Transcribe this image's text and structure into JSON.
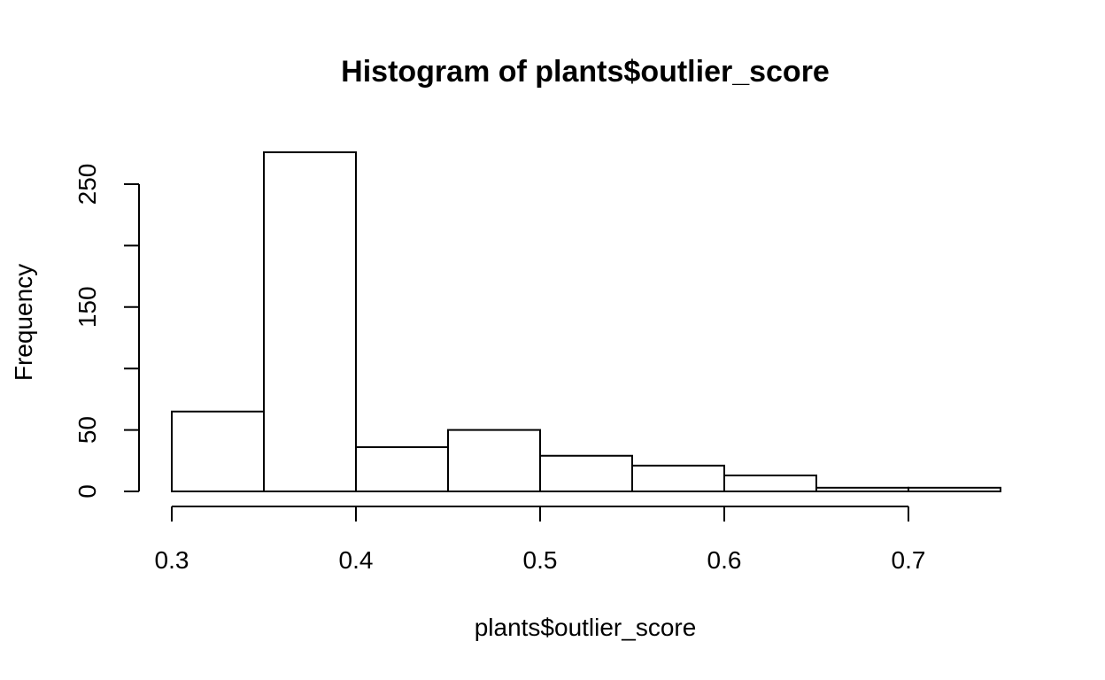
{
  "chart_data": {
    "type": "bar",
    "title": "Histogram of plants$outlier_score",
    "xlabel": "plants$outlier_score",
    "ylabel": "Frequency",
    "bins": [
      {
        "start": 0.3,
        "end": 0.35,
        "count": 65
      },
      {
        "start": 0.35,
        "end": 0.4,
        "count": 276
      },
      {
        "start": 0.4,
        "end": 0.45,
        "count": 36
      },
      {
        "start": 0.45,
        "end": 0.5,
        "count": 50
      },
      {
        "start": 0.5,
        "end": 0.55,
        "count": 29
      },
      {
        "start": 0.55,
        "end": 0.6,
        "count": 21
      },
      {
        "start": 0.6,
        "end": 0.65,
        "count": 13
      },
      {
        "start": 0.65,
        "end": 0.7,
        "count": 3
      },
      {
        "start": 0.7,
        "end": 0.75,
        "count": 3
      }
    ],
    "x_ticks": [
      {
        "value": 0.3,
        "label": "0.3"
      },
      {
        "value": 0.4,
        "label": "0.4"
      },
      {
        "value": 0.5,
        "label": "0.5"
      },
      {
        "value": 0.6,
        "label": "0.6"
      },
      {
        "value": 0.7,
        "label": "0.7"
      }
    ],
    "y_ticks": [
      {
        "value": 0,
        "label": "0"
      },
      {
        "value": 50,
        "label": "50"
      },
      {
        "value": 100,
        "label": ""
      },
      {
        "value": 150,
        "label": "150"
      },
      {
        "value": 200,
        "label": ""
      },
      {
        "value": 250,
        "label": "250"
      }
    ],
    "xlim": [
      0.3,
      0.75
    ],
    "ylim": [
      0,
      276
    ],
    "grid": false,
    "legend": "none",
    "colors": {
      "bar_fill": "#ffffff",
      "bar_stroke": "#000000"
    }
  }
}
